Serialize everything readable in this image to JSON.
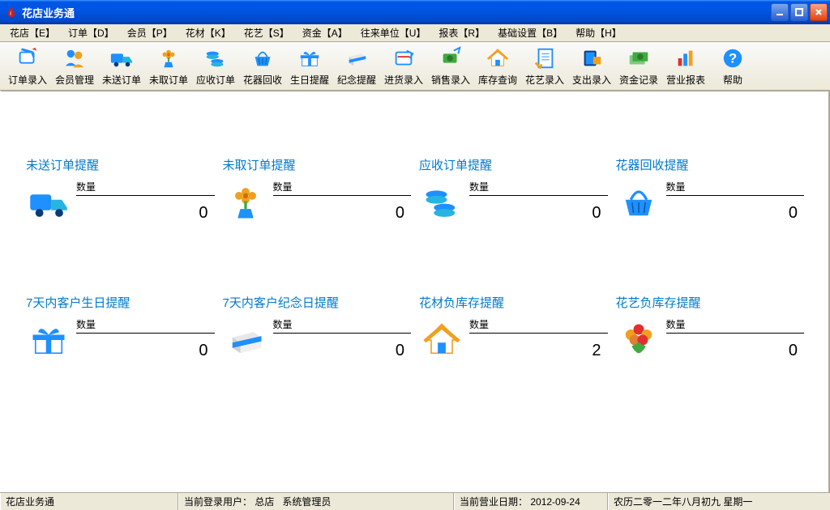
{
  "window": {
    "title": "花店业务通"
  },
  "menu": {
    "items": [
      "花店【E】",
      "订单【D】",
      "会员【P】",
      "花材【K】",
      "花艺【S】",
      "资金【A】",
      "往来单位【U】",
      "报表【R】",
      "基础设置【B】",
      "帮助【H】"
    ]
  },
  "toolbar": {
    "items": [
      {
        "label": "订单录入",
        "icon": "order-entry"
      },
      {
        "label": "会员管理",
        "icon": "member"
      },
      {
        "label": "未送订单",
        "icon": "truck"
      },
      {
        "label": "未取订单",
        "icon": "flower"
      },
      {
        "label": "应收订单",
        "icon": "coins"
      },
      {
        "label": "花器回收",
        "icon": "basket"
      },
      {
        "label": "生日提醒",
        "icon": "gift"
      },
      {
        "label": "纪念提醒",
        "icon": "giftbox"
      },
      {
        "label": "进货录入",
        "icon": "inbound"
      },
      {
        "label": "销售录入",
        "icon": "sales"
      },
      {
        "label": "库存查询",
        "icon": "house"
      },
      {
        "label": "花艺录入",
        "icon": "record"
      },
      {
        "label": "支出录入",
        "icon": "expense"
      },
      {
        "label": "资金记录",
        "icon": "money"
      },
      {
        "label": "营业报表",
        "icon": "chart"
      },
      {
        "label": "帮助",
        "icon": "help"
      }
    ]
  },
  "cards": [
    {
      "title": "未送订单提醒",
      "qty_label": "数量",
      "value": "0",
      "icon": "truck"
    },
    {
      "title": "未取订单提醒",
      "qty_label": "数量",
      "value": "0",
      "icon": "flower"
    },
    {
      "title": "应收订单提醒",
      "qty_label": "数量",
      "value": "0",
      "icon": "coins"
    },
    {
      "title": "花器回收提醒",
      "qty_label": "数量",
      "value": "0",
      "icon": "basket"
    },
    {
      "title": "7天内客户生日提醒",
      "qty_label": "数量",
      "value": "0",
      "icon": "gift"
    },
    {
      "title": "7天内客户纪念日提醒",
      "qty_label": "数量",
      "value": "0",
      "icon": "giftbox"
    },
    {
      "title": "花材负库存提醒",
      "qty_label": "数量",
      "value": "2",
      "icon": "house"
    },
    {
      "title": "花艺负库存提醒",
      "qty_label": "数量",
      "value": "0",
      "icon": "bouquet"
    }
  ],
  "status": {
    "app": "花店业务通",
    "user_label": "当前登录用户：",
    "user_store": "总店",
    "user_name": "系统管理员",
    "date_label": "当前营业日期：",
    "date_value": "2012-09-24",
    "lunar": "农历二零一二年八月初九   星期一"
  },
  "colors": {
    "titlebar_blue": "#0055e5",
    "link_blue": "#007acc",
    "icon_blue": "#1e90ff",
    "icon_cyan": "#26b4e0",
    "icon_orange": "#f0a020",
    "icon_green": "#3faa3f",
    "icon_red": "#e3440b",
    "bg": "#ece9d8"
  }
}
